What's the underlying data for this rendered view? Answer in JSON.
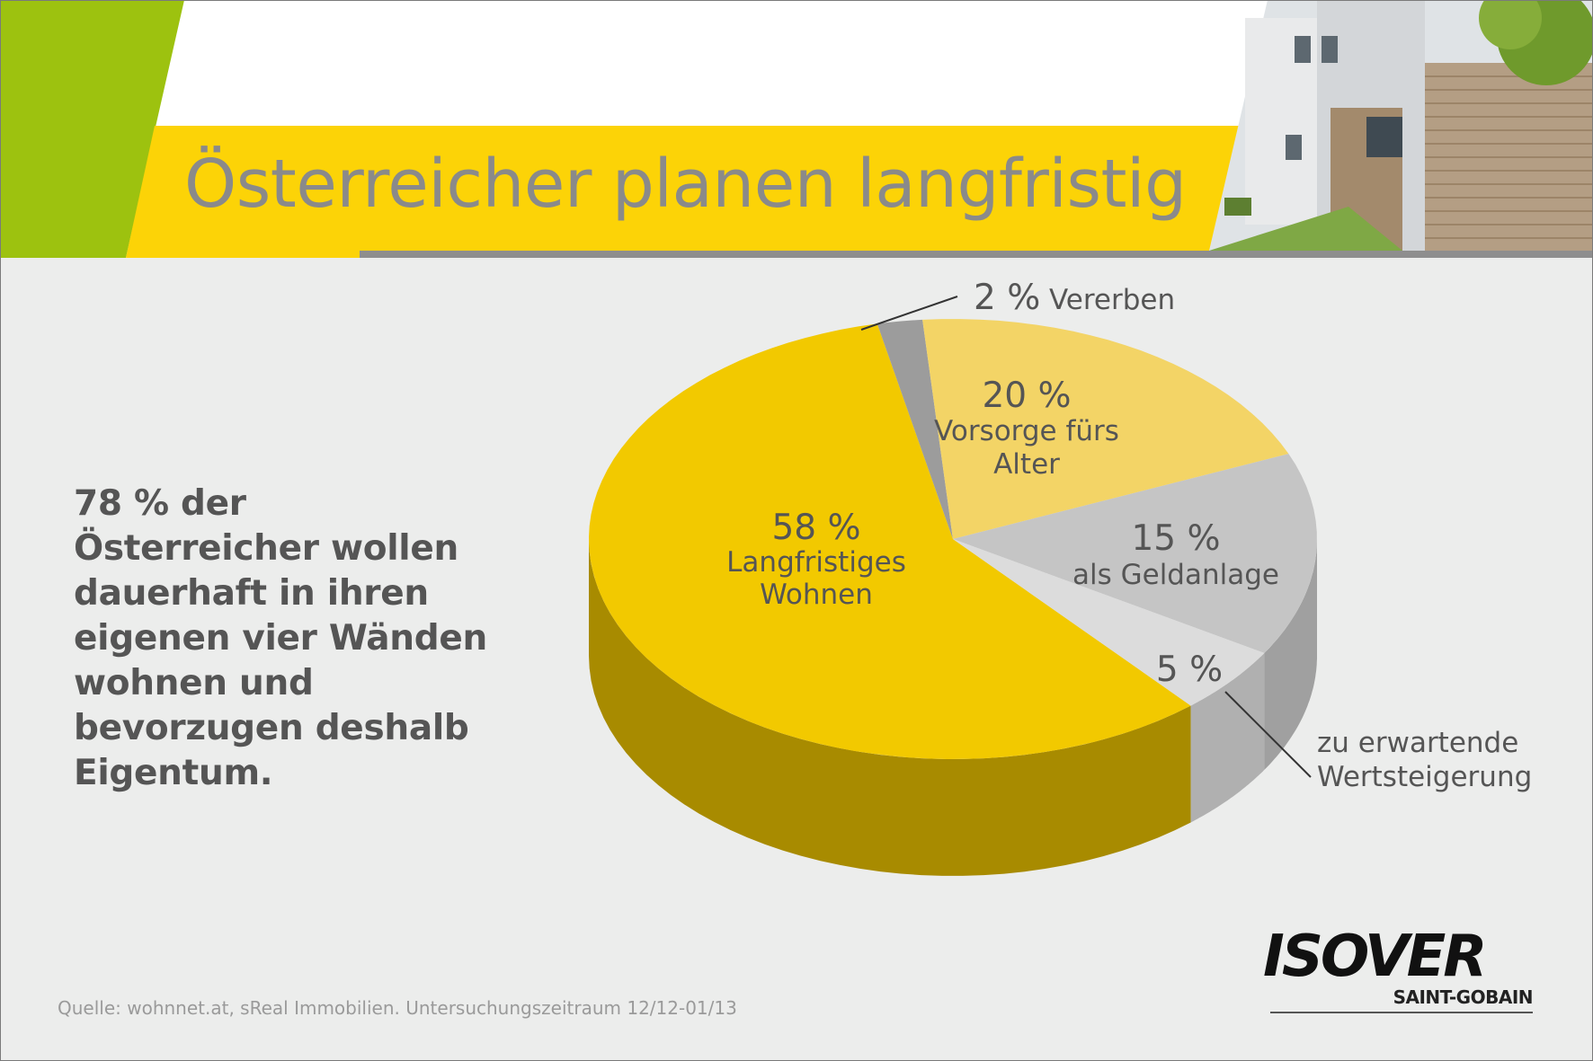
{
  "header": {
    "title": "Österreicher planen langfristig"
  },
  "intro": {
    "text": "78 % der Österreicher wollen dauerhaft in ihren eigenen vier Wänden wohnen und bevorzugen deshalb Eigentum."
  },
  "source": "Quelle: wohnnet.at, sReal Immobilien. Untersuchungszeitraum 12/12-01/13",
  "logo": {
    "brand": "ISOVER",
    "sub": "SAINT-GOBAIN"
  },
  "colors": {
    "green_accent": "#9dc20f",
    "yellow_band": "#fcd307",
    "slice_wohnen": "#f2c900",
    "slice_vorsorge": "#f3d466",
    "slice_geldanlage": "#c5c5c5",
    "slice_wert": "#dcdcdc",
    "slice_vererben": "#9c9c9c"
  },
  "chart_data": {
    "type": "pie",
    "title": "",
    "slices": [
      {
        "label_lines": [
          "Langfristiges",
          "Wohnen"
        ],
        "value": 58,
        "value_label": "58 %",
        "color": "#f2c900",
        "side_color": "#a88b00"
      },
      {
        "label_lines": [
          "Vererben"
        ],
        "value": 2,
        "value_label": "2 %",
        "color": "#9c9c9c",
        "side_color": "#7a7a7a"
      },
      {
        "label_lines": [
          "Vorsorge fürs",
          "Alter"
        ],
        "value": 20,
        "value_label": "20 %",
        "color": "#f3d466",
        "side_color": "#c4a840"
      },
      {
        "label_lines": [
          "als Geldanlage"
        ],
        "value": 15,
        "value_label": "15 %",
        "color": "#c5c5c5",
        "side_color": "#a0a0a0"
      },
      {
        "label_lines": [
          "zu erwartende",
          "Wertsteigerung"
        ],
        "value": 5,
        "value_label": "5 %",
        "color": "#dcdcdc",
        "side_color": "#b0b0b0"
      }
    ]
  }
}
